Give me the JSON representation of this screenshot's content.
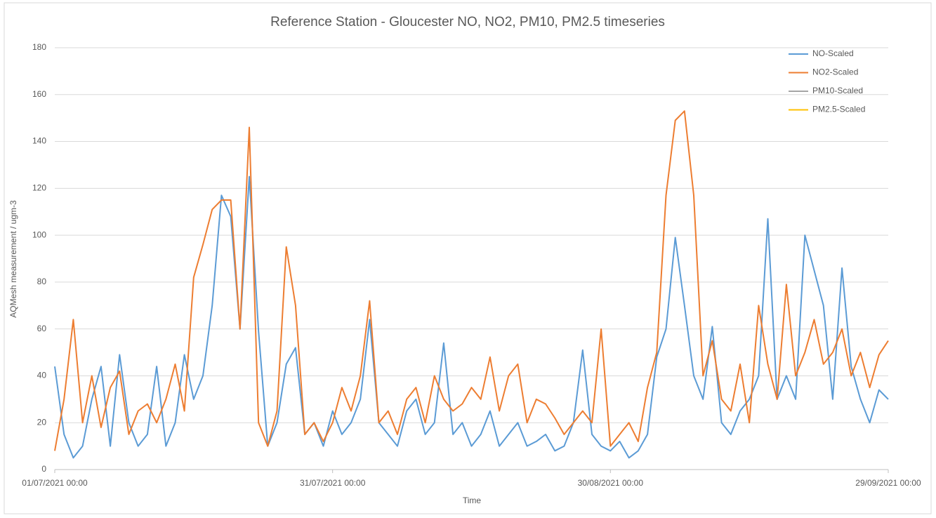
{
  "chart_data": {
    "type": "line",
    "title": "Reference Station - Gloucester NO, NO2, PM10, PM2.5 timeseries",
    "xlabel": "Time",
    "ylabel": "AQMesh measurement / ugm-3",
    "x": [
      "01/07/2021 00:00",
      "02/07/2021 00:00",
      "03/07/2021 00:00",
      "04/07/2021 00:00",
      "05/07/2021 00:00",
      "06/07/2021 00:00",
      "07/07/2021 00:00",
      "08/07/2021 00:00",
      "09/07/2021 00:00",
      "10/07/2021 00:00",
      "11/07/2021 00:00",
      "12/07/2021 00:00",
      "13/07/2021 00:00",
      "14/07/2021 00:00",
      "15/07/2021 00:00",
      "16/07/2021 00:00",
      "17/07/2021 00:00",
      "18/07/2021 00:00",
      "19/07/2021 00:00",
      "20/07/2021 00:00",
      "21/07/2021 00:00",
      "22/07/2021 00:00",
      "23/07/2021 00:00",
      "24/07/2021 00:00",
      "25/07/2021 00:00",
      "26/07/2021 00:00",
      "27/07/2021 00:00",
      "28/07/2021 00:00",
      "29/07/2021 00:00",
      "30/07/2021 00:00",
      "31/07/2021 00:00",
      "01/08/2021 00:00",
      "02/08/2021 00:00",
      "03/08/2021 00:00",
      "04/08/2021 00:00",
      "05/08/2021 00:00",
      "06/08/2021 00:00",
      "07/08/2021 00:00",
      "08/08/2021 00:00",
      "09/08/2021 00:00",
      "10/08/2021 00:00",
      "11/08/2021 00:00",
      "12/08/2021 00:00",
      "13/08/2021 00:00",
      "14/08/2021 00:00",
      "15/08/2021 00:00",
      "16/08/2021 00:00",
      "17/08/2021 00:00",
      "18/08/2021 00:00",
      "19/08/2021 00:00",
      "20/08/2021 00:00",
      "21/08/2021 00:00",
      "22/08/2021 00:00",
      "23/08/2021 00:00",
      "24/08/2021 00:00",
      "25/08/2021 00:00",
      "26/08/2021 00:00",
      "27/08/2021 00:00",
      "28/08/2021 00:00",
      "29/08/2021 00:00",
      "30/08/2021 00:00",
      "31/08/2021 00:00",
      "01/09/2021 00:00",
      "02/09/2021 00:00",
      "03/09/2021 00:00",
      "04/09/2021 00:00",
      "05/09/2021 00:00",
      "06/09/2021 00:00",
      "07/09/2021 00:00",
      "08/09/2021 00:00",
      "09/09/2021 00:00",
      "10/09/2021 00:00",
      "11/09/2021 00:00",
      "12/09/2021 00:00",
      "13/09/2021 00:00",
      "14/09/2021 00:00",
      "15/09/2021 00:00",
      "16/09/2021 00:00",
      "17/09/2021 00:00",
      "18/09/2021 00:00",
      "19/09/2021 00:00",
      "20/09/2021 00:00",
      "21/09/2021 00:00",
      "22/09/2021 00:00",
      "23/09/2021 00:00",
      "24/09/2021 00:00",
      "25/09/2021 00:00",
      "26/09/2021 00:00",
      "27/09/2021 00:00",
      "28/09/2021 00:00",
      "29/09/2021 00:00"
    ],
    "series": [
      {
        "name": "NO-Scaled",
        "color": "#5b9bd5",
        "values": [
          44,
          15,
          5,
          10,
          30,
          44,
          10,
          49,
          20,
          10,
          15,
          44,
          10,
          20,
          49,
          30,
          40,
          70,
          117,
          108,
          60,
          125,
          59,
          10,
          20,
          45,
          52,
          15,
          20,
          10,
          25,
          15,
          20,
          30,
          64,
          20,
          15,
          10,
          25,
          30,
          15,
          20,
          54,
          15,
          20,
          10,
          15,
          25,
          10,
          15,
          20,
          10,
          12,
          15,
          8,
          10,
          20,
          51,
          15,
          10,
          8,
          12,
          5,
          8,
          15,
          48,
          60,
          99,
          70,
          40,
          30,
          61,
          20,
          15,
          25,
          30,
          40,
          107,
          30,
          40,
          30,
          100,
          85,
          70,
          30,
          86,
          44,
          30,
          20,
          34,
          30
        ]
      },
      {
        "name": "NO2-Scaled",
        "color": "#ed7d31",
        "values": [
          8,
          30,
          64,
          20,
          40,
          18,
          35,
          42,
          15,
          25,
          28,
          20,
          30,
          45,
          25,
          82,
          96,
          111,
          115,
          115,
          60,
          146,
          20,
          10,
          25,
          95,
          70,
          15,
          20,
          12,
          20,
          35,
          25,
          40,
          72,
          20,
          25,
          15,
          30,
          35,
          20,
          40,
          30,
          25,
          28,
          35,
          30,
          48,
          25,
          40,
          45,
          20,
          30,
          28,
          22,
          15,
          20,
          25,
          20,
          60,
          10,
          15,
          20,
          12,
          35,
          50,
          117,
          149,
          153,
          117,
          40,
          55,
          30,
          25,
          45,
          20,
          70,
          45,
          30,
          79,
          40,
          50,
          64,
          45,
          50,
          60,
          40,
          50,
          35,
          49,
          55
        ]
      },
      {
        "name": "PM10-Scaled",
        "color": "#a5a5a5",
        "values": [
          null,
          null,
          null,
          null,
          null,
          null,
          null,
          null,
          null,
          null,
          null,
          null,
          null,
          null,
          null,
          null,
          null,
          null,
          null,
          null,
          null,
          null,
          null,
          null,
          null,
          null,
          null,
          null,
          null,
          null,
          null,
          null,
          null,
          null,
          null,
          null,
          null,
          null,
          null,
          null,
          null,
          null,
          null,
          null,
          null,
          null,
          null,
          null,
          null,
          null,
          null,
          null,
          null,
          null,
          null,
          null,
          null,
          null,
          null,
          null,
          null,
          null,
          null,
          null,
          null,
          null,
          null,
          null,
          null,
          null,
          null,
          null,
          null,
          null,
          null,
          null,
          null,
          null,
          null,
          null,
          null,
          null,
          null,
          null,
          null,
          null,
          null,
          null,
          null,
          null,
          null
        ]
      },
      {
        "name": "PM2.5-Scaled",
        "color": "#ffc000",
        "values": [
          null,
          null,
          null,
          null,
          null,
          null,
          null,
          null,
          null,
          null,
          null,
          null,
          null,
          null,
          null,
          null,
          null,
          null,
          null,
          null,
          null,
          null,
          null,
          null,
          null,
          null,
          null,
          null,
          null,
          null,
          null,
          null,
          null,
          null,
          null,
          null,
          null,
          null,
          null,
          null,
          null,
          null,
          null,
          null,
          null,
          null,
          null,
          null,
          null,
          null,
          null,
          null,
          null,
          null,
          null,
          null,
          null,
          null,
          null,
          null,
          null,
          null,
          null,
          null,
          null,
          null,
          null,
          null,
          null,
          null,
          null,
          null,
          null,
          null,
          null,
          null,
          null,
          null,
          null,
          null,
          null,
          null,
          null,
          null,
          null,
          null,
          null,
          null,
          null,
          null,
          null
        ]
      }
    ],
    "xlim": [
      "01/07/2021 00:00",
      "29/09/2021 00:00"
    ],
    "xticks": [
      "01/07/2021 00:00",
      "31/07/2021 00:00",
      "30/08/2021 00:00",
      "29/09/2021 00:00"
    ],
    "ylim": [
      0,
      180
    ],
    "yticks": [
      0,
      20,
      40,
      60,
      80,
      100,
      120,
      140,
      160,
      180
    ],
    "grid": true,
    "legend": "top-right"
  }
}
